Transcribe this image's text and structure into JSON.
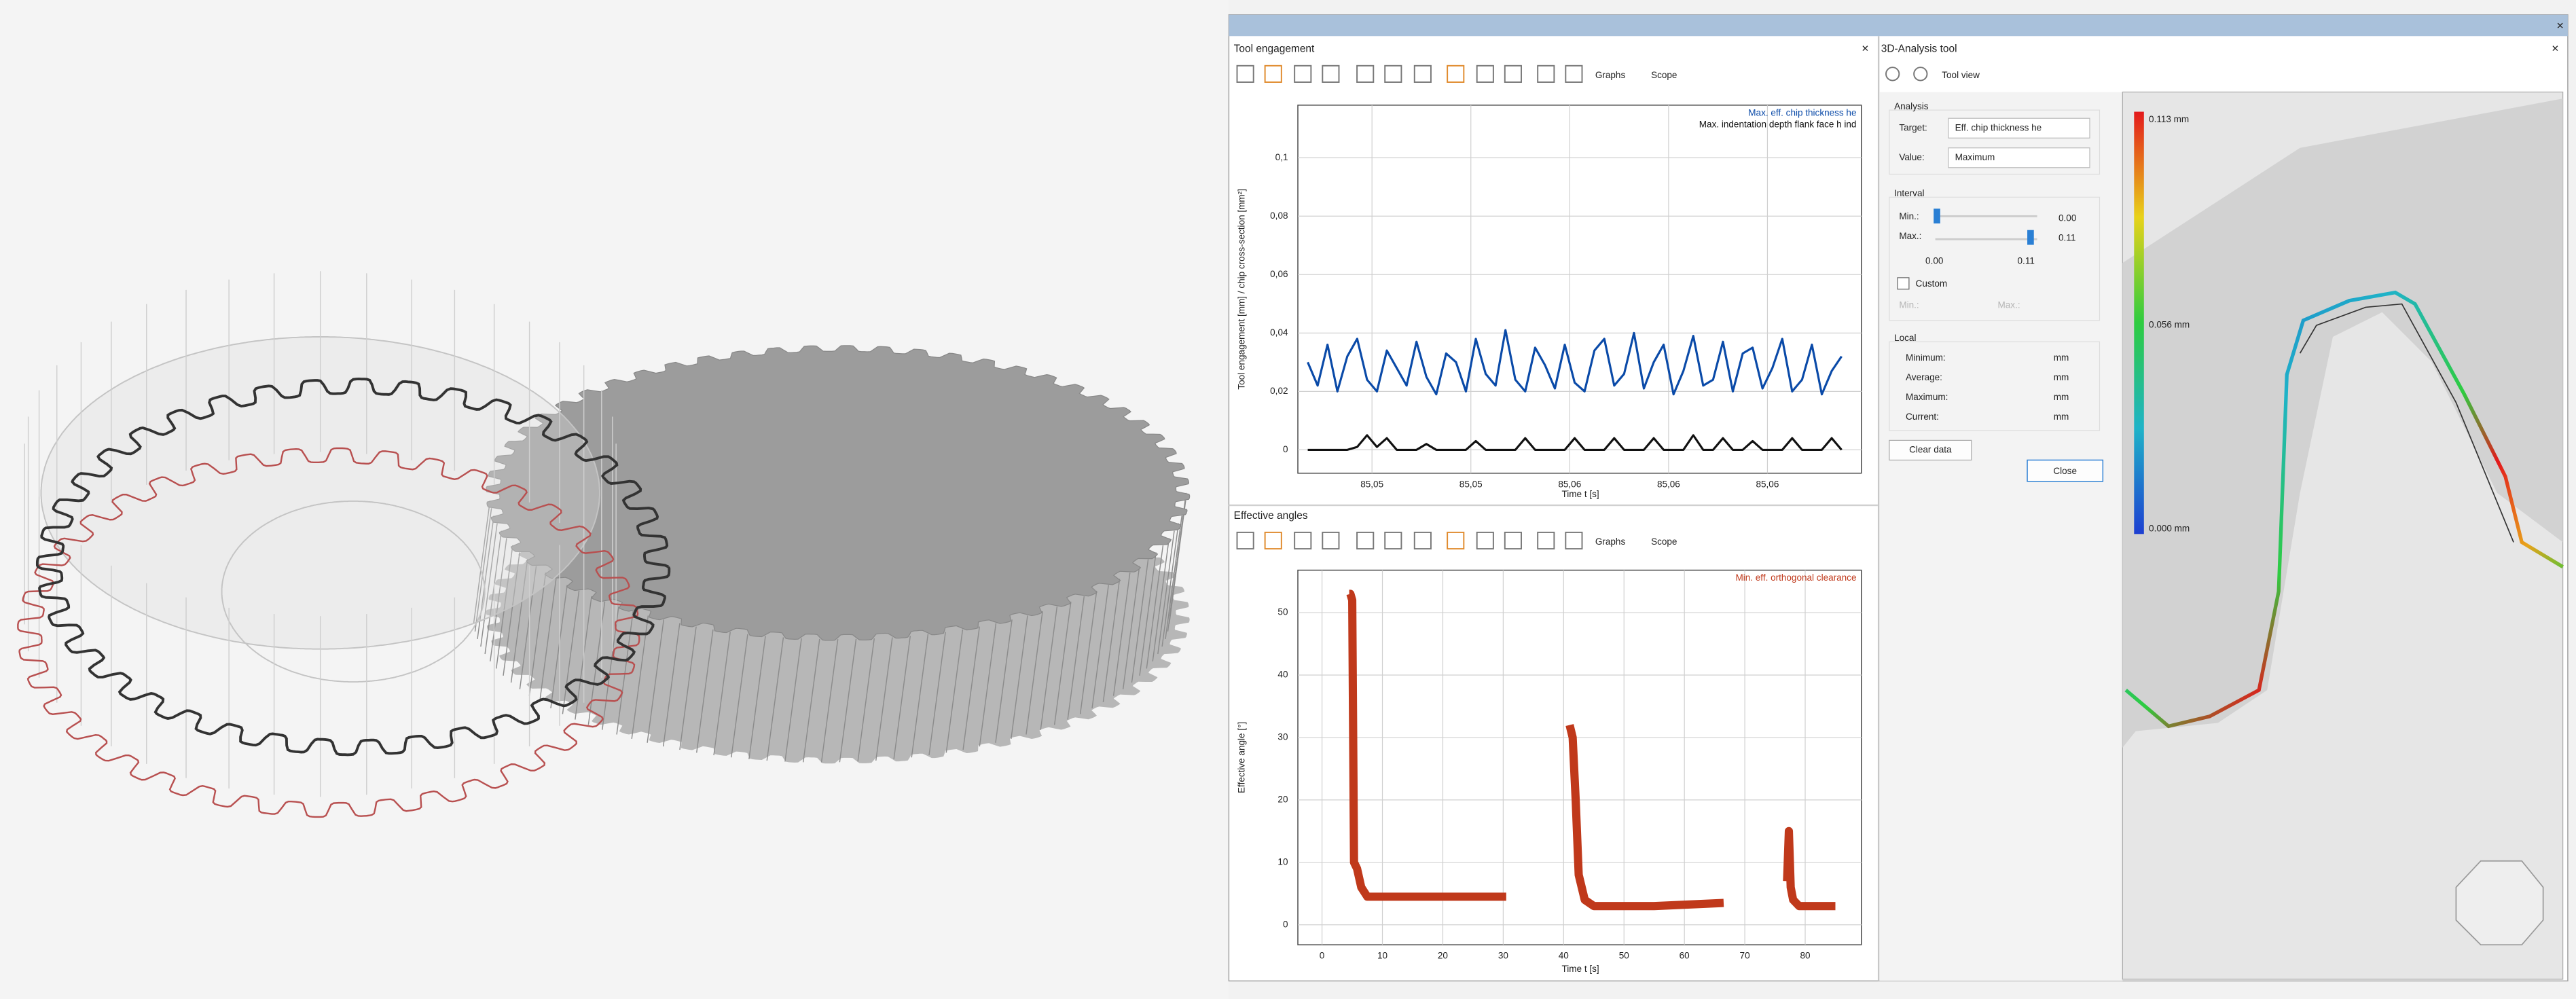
{
  "tool_engagement": {
    "title": "Tool engagement",
    "graphs": "Graphs",
    "scope": "Scope"
  },
  "effective_angles": {
    "title": "Effective angles",
    "graphs": "Graphs",
    "scope": "Scope"
  },
  "chart_data": [
    {
      "type": "line",
      "ylabel": "Tool engagement [mm] / chip cross-section [mm²]",
      "xlabel": "Time t [s]",
      "xlim": [
        85.0495,
        85.0609
      ],
      "ylim": [
        -0.008,
        0.118
      ],
      "xticks": [
        {
          "value": 85.051,
          "label": "85,05"
        },
        {
          "value": 85.053,
          "label": "85,05"
        },
        {
          "value": 85.055,
          "label": "85,06"
        },
        {
          "value": 85.057,
          "label": "85,06"
        },
        {
          "value": 85.059,
          "label": "85,06"
        }
      ],
      "yticks": [
        0,
        {
          "value": 0.02,
          "label": "0,02"
        },
        {
          "value": 0.04,
          "label": "0,04"
        },
        {
          "value": 0.06,
          "label": "0,06"
        },
        {
          "value": 0.08,
          "label": "0,08"
        },
        {
          "value": 0.1,
          "label": "0,1"
        }
      ],
      "grid": true,
      "legend": "top-right",
      "x": [
        85.0497,
        85.0499,
        85.0501,
        85.0503,
        85.0505,
        85.0507,
        85.0509,
        85.0511,
        85.0513,
        85.0515,
        85.0517,
        85.0519,
        85.0521,
        85.0523,
        85.0525,
        85.0527,
        85.0529,
        85.0531,
        85.0533,
        85.0535,
        85.0537,
        85.0539,
        85.0541,
        85.0543,
        85.0545,
        85.0547,
        85.0549,
        85.0551,
        85.0553,
        85.0555,
        85.0557,
        85.0559,
        85.0561,
        85.0563,
        85.0565,
        85.0567,
        85.0569,
        85.0571,
        85.0573,
        85.0575,
        85.0577,
        85.0579,
        85.0581,
        85.0583,
        85.0585,
        85.0587,
        85.0589,
        85.0591,
        85.0593,
        85.0595,
        85.0597,
        85.0599,
        85.0601,
        85.0603,
        85.0605
      ],
      "series": [
        {
          "name": "Max. eff. chip thickness he",
          "color": "#0a4aa8",
          "values": [
            0.03,
            0.022,
            0.036,
            0.02,
            0.032,
            0.038,
            0.024,
            0.02,
            0.034,
            0.028,
            0.022,
            0.037,
            0.025,
            0.019,
            0.033,
            0.03,
            0.02,
            0.038,
            0.026,
            0.022,
            0.041,
            0.024,
            0.02,
            0.035,
            0.029,
            0.021,
            0.036,
            0.023,
            0.02,
            0.034,
            0.038,
            0.022,
            0.026,
            0.04,
            0.021,
            0.03,
            0.036,
            0.019,
            0.027,
            0.039,
            0.022,
            0.024,
            0.037,
            0.02,
            0.033,
            0.035,
            0.021,
            0.028,
            0.038,
            0.02,
            0.024,
            0.036,
            0.019,
            0.027,
            0.032
          ]
        },
        {
          "name": "Max. indentation depth flank face h ind",
          "color": "#111111",
          "values": [
            0,
            0,
            0,
            0,
            0,
            0.001,
            0.005,
            0.001,
            0.004,
            0,
            0,
            0,
            0.002,
            0,
            0,
            0,
            0,
            0.003,
            0,
            0,
            0,
            0,
            0.004,
            0,
            0,
            0,
            0,
            0.004,
            0,
            0,
            0,
            0.004,
            0,
            0,
            0,
            0.004,
            0,
            0,
            0,
            0.005,
            0,
            0,
            0.004,
            0,
            0,
            0.003,
            0,
            0,
            0,
            0.004,
            0,
            0,
            0,
            0.004,
            0
          ]
        }
      ]
    },
    {
      "type": "line",
      "ylabel": "Effective angle [°]",
      "xlabel": "Time t [s]",
      "xlim": [
        -4,
        89.3
      ],
      "ylim": [
        -3.2,
        56.8
      ],
      "xticks": [
        0,
        10,
        20,
        30,
        40,
        50,
        60,
        70,
        80
      ],
      "yticks": [
        0,
        10,
        20,
        30,
        40,
        50
      ],
      "grid": true,
      "legend": "top-right",
      "x": [
        4.5,
        4.7,
        5.0,
        5.3,
        5.8,
        6.5,
        7.5,
        10,
        20,
        30.5,
        35,
        41,
        41.5,
        42,
        42.5,
        43.5,
        45,
        55,
        66.5,
        72,
        77,
        77.3,
        77.6,
        78,
        79,
        85
      ],
      "series": [
        {
          "name": "Min. eff. orthogonal clearance",
          "color": "#c0391b",
          "values": [
            53,
            53,
            52,
            10,
            9,
            6,
            4.5,
            4.5,
            4.5,
            4.5,
            null,
            32,
            30,
            20,
            8,
            4,
            3,
            3,
            3.5,
            null,
            7,
            15,
            6,
            4,
            3,
            3
          ]
        }
      ]
    }
  ],
  "analysis_tool": {
    "title": "3D-Analysis tool",
    "tool_view": "Tool view",
    "analysis": {
      "label": "Analysis",
      "target_label": "Target:",
      "target": "Eff. chip thickness he",
      "value_label": "Value:",
      "value": "Maximum"
    },
    "interval": {
      "label": "Interval",
      "min_label": "Min.:",
      "min_value": "0.00",
      "max_label": "Max.:",
      "max_value": "0.11",
      "range_min": "0.00",
      "range_max": "0.11",
      "custom": "Custom",
      "custom_min": "Min.:",
      "custom_max": "Max.:"
    },
    "local": {
      "label": "Local",
      "rows": [
        [
          "Minimum:",
          "mm"
        ],
        [
          "Average:",
          "mm"
        ],
        [
          "Maximum:",
          "mm"
        ],
        [
          "Current:",
          "mm"
        ]
      ]
    },
    "clear": "Clear data",
    "close": "Close"
  },
  "color_scale": {
    "max": "0.113 mm",
    "mid": "0.056 mm",
    "min": "0.000 mm"
  }
}
